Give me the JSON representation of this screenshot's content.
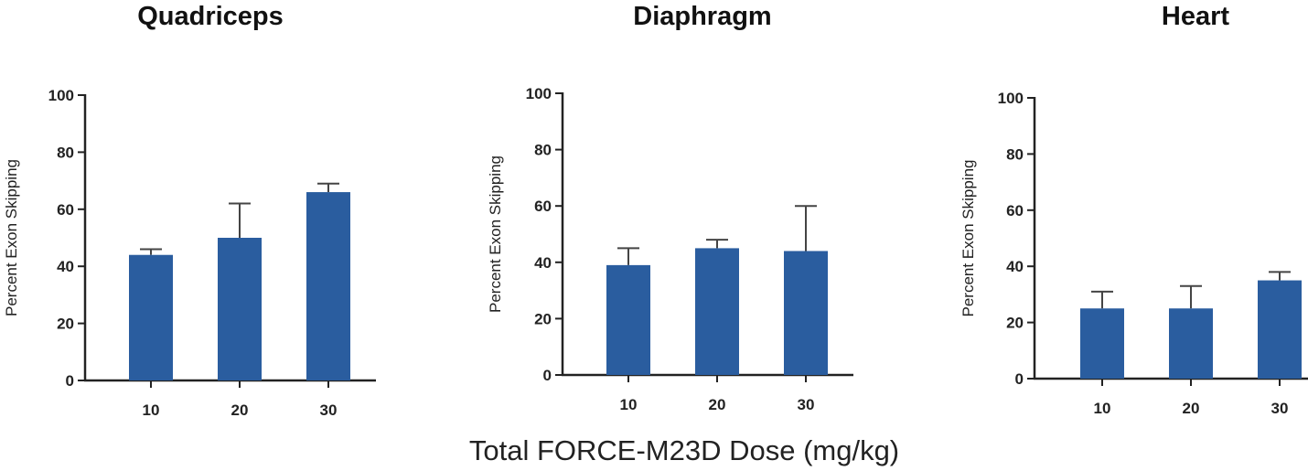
{
  "colors": {
    "bar": "#2a5d9f",
    "axis": "#222222"
  },
  "shared_xlabel": "Total FORCE-M23D Dose (mg/kg)",
  "chart_data": [
    {
      "type": "bar",
      "title": "Quadriceps",
      "ylabel": "Percent Exon Skipping",
      "xlabel": "",
      "categories": [
        "10",
        "20",
        "30"
      ],
      "values": [
        44,
        50,
        66
      ],
      "error_upper": [
        46,
        62,
        69
      ],
      "ylim": [
        0,
        100
      ],
      "yticks": [
        0,
        20,
        40,
        60,
        80,
        100
      ],
      "grid": false
    },
    {
      "type": "bar",
      "title": "Diaphragm",
      "ylabel": "Percent Exon Skipping",
      "xlabel": "",
      "categories": [
        "10",
        "20",
        "30"
      ],
      "values": [
        39,
        45,
        44
      ],
      "error_upper": [
        45,
        48,
        60
      ],
      "ylim": [
        0,
        100
      ],
      "yticks": [
        0,
        20,
        40,
        60,
        80,
        100
      ],
      "grid": false
    },
    {
      "type": "bar",
      "title": "Heart",
      "ylabel": "Percent Exon Skipping",
      "xlabel": "",
      "categories": [
        "10",
        "20",
        "30"
      ],
      "values": [
        25,
        25,
        35
      ],
      "error_upper": [
        31,
        33,
        38
      ],
      "ylim": [
        0,
        100
      ],
      "yticks": [
        0,
        20,
        40,
        60,
        80,
        100
      ],
      "grid": false
    }
  ]
}
